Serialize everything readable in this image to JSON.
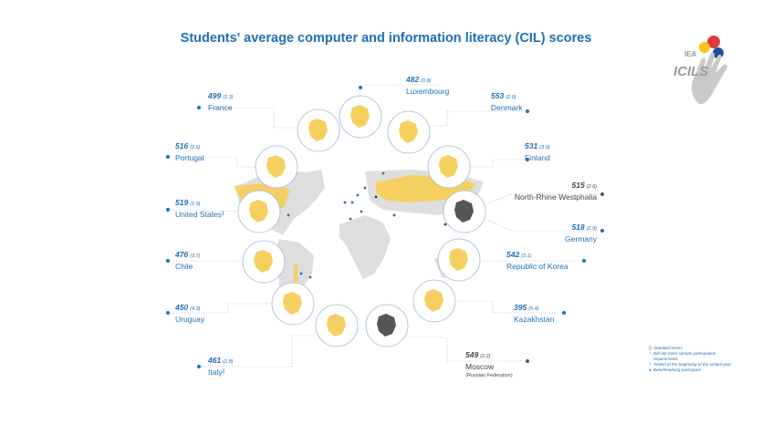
{
  "title": "Students' average computer and information literacy (CIL) scores",
  "logo": {
    "org": "IEA",
    "name": "ICILS"
  },
  "colors": {
    "accent": "#1f6fb5",
    "country": "#f5d061",
    "benchmark": "#555555",
    "land": "#dedede"
  },
  "chart_data": {
    "type": "map",
    "title": "Students' average computer and information literacy (CIL) scores",
    "series": [
      {
        "label": "Luxembourg",
        "value": 482,
        "se": "(0.8)",
        "kind": "country",
        "flag": ""
      },
      {
        "label": "Denmark",
        "value": 553,
        "se": "(2.0)",
        "kind": "country",
        "flag": ""
      },
      {
        "label": "France",
        "value": 499,
        "se": "(2.3)",
        "kind": "country",
        "flag": ""
      },
      {
        "label": "Portugal",
        "value": 516,
        "se": "(2.6)",
        "kind": "country",
        "flag": ""
      },
      {
        "label": "Finland",
        "value": 531,
        "se": "(3.0)",
        "kind": "country",
        "flag": ""
      },
      {
        "label": "North-Rhine Westphalia",
        "value": 515,
        "se": "(2.6)",
        "kind": "benchmark",
        "flag": ""
      },
      {
        "label": "United States",
        "value": 519,
        "se": "(1.9)",
        "kind": "country",
        "flag": "¹"
      },
      {
        "label": "Germany",
        "value": 518,
        "se": "(2.9)",
        "kind": "country",
        "flag": ""
      },
      {
        "label": "Chile",
        "value": 476,
        "se": "(3.7)",
        "kind": "country",
        "flag": ""
      },
      {
        "label": "Republic of Korea",
        "value": 542,
        "se": "(3.1)",
        "kind": "country",
        "flag": ""
      },
      {
        "label": "Uruguay",
        "value": 450,
        "se": "(4.3)",
        "kind": "country",
        "flag": ""
      },
      {
        "label": "Kazakhstan",
        "value": 395,
        "se": "(5.4)",
        "kind": "country",
        "flag": ""
      },
      {
        "label": "Italy",
        "value": 461,
        "se": "(2.8)",
        "kind": "country",
        "flag": "²"
      },
      {
        "label": "Moscow",
        "value": 549,
        "se": "(2.2)",
        "kind": "benchmark",
        "flag": "",
        "sublabel": "(Russian Federation)"
      }
    ]
  },
  "legend": [
    {
      "mark": "()",
      "text": "Standard errors"
    },
    {
      "mark": "¹",
      "text": "Did not meet sample participation requirements"
    },
    {
      "mark": "²",
      "text": "Tested at the beginning of the school year"
    },
    {
      "mark": "●",
      "text": "Benchmarking participant"
    }
  ]
}
